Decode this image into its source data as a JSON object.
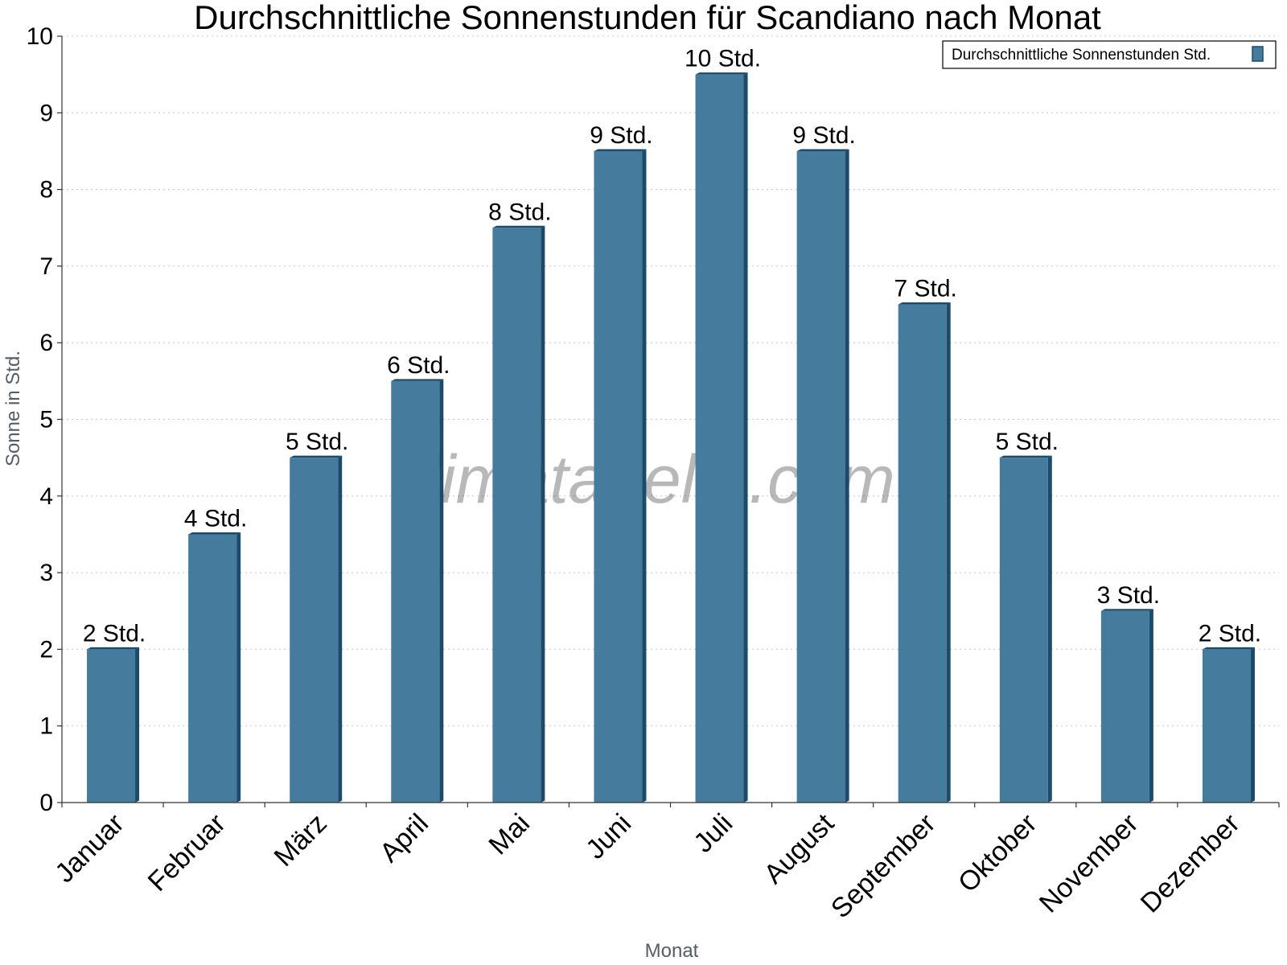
{
  "chart_data": {
    "type": "bar",
    "title": "Durchschnittliche Sonnenstunden für Scandiano nach Monat",
    "xlabel": "Monat",
    "ylabel": "Sonne in Std.",
    "ylim": [
      0,
      10
    ],
    "yticks": [
      0,
      1,
      2,
      3,
      4,
      5,
      6,
      7,
      8,
      9,
      10
    ],
    "grid": true,
    "legend_position": "top-right",
    "categories": [
      "Januar",
      "Februar",
      "März",
      "April",
      "Mai",
      "Juni",
      "Juli",
      "August",
      "September",
      "Oktober",
      "November",
      "Dezember"
    ],
    "series": [
      {
        "name": "Durchschnittliche Sonnenstunden Std.",
        "color": "#457b9d",
        "values": [
          2,
          3.5,
          4.5,
          5.5,
          7.5,
          8.5,
          9.5,
          8.5,
          6.5,
          4.5,
          2.5,
          2
        ],
        "data_labels": [
          "2 Std.",
          "4 Std.",
          "5 Std.",
          "6 Std.",
          "8 Std.",
          "9 Std.",
          "10 Std.",
          "9 Std.",
          "7 Std.",
          "5 Std.",
          "3 Std.",
          "2 Std."
        ]
      }
    ]
  },
  "watermark": "klimatabelle.com"
}
